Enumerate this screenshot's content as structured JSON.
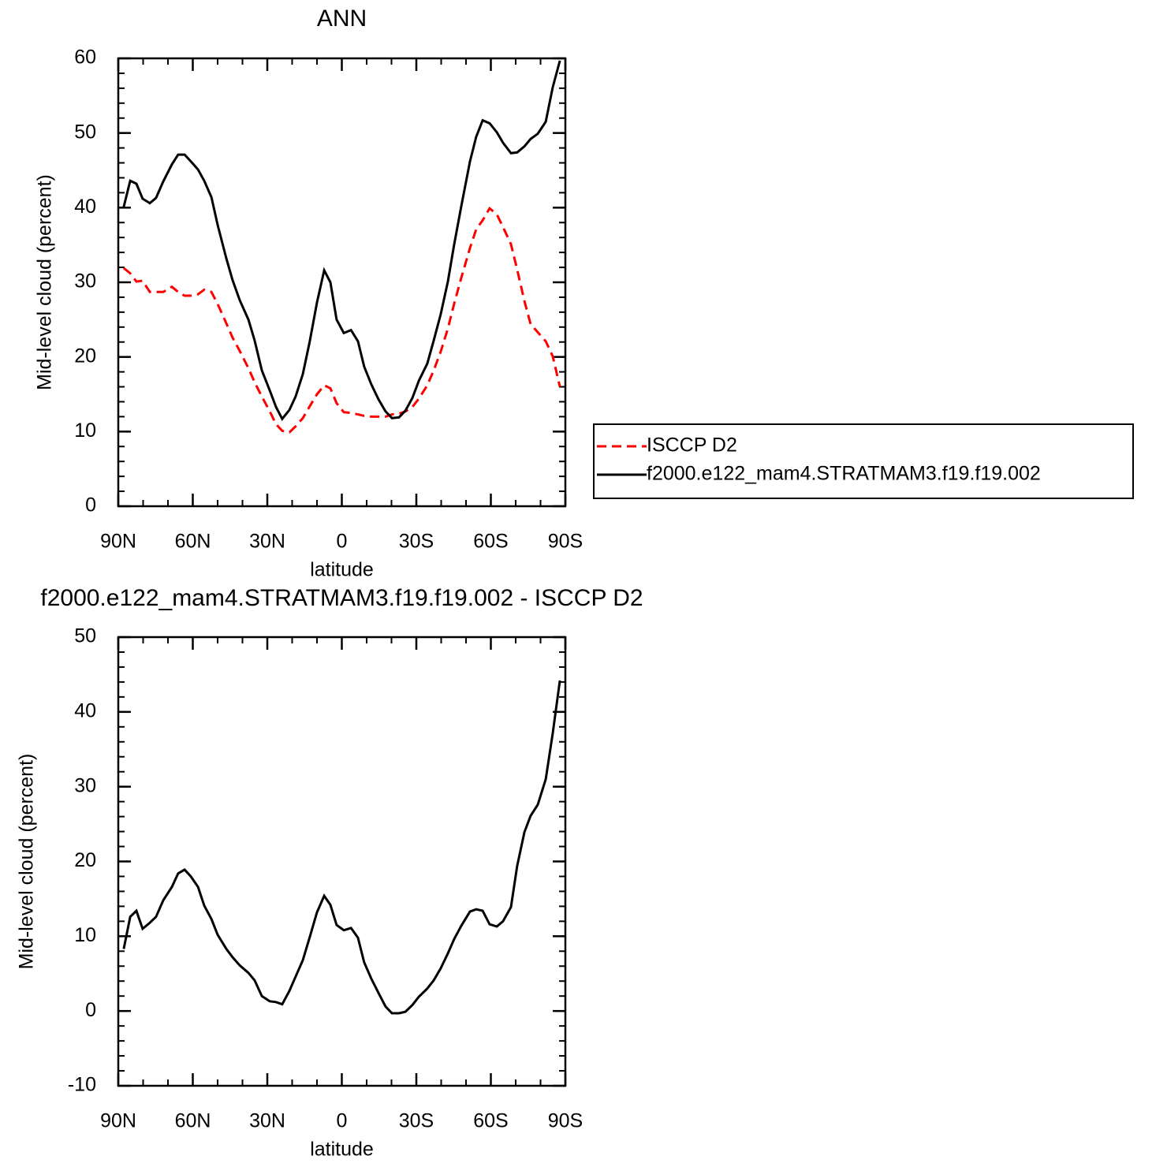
{
  "chart_data": [
    {
      "type": "line",
      "title": "ANN",
      "xlabel": "latitude",
      "ylabel": "Mid-level cloud (percent)",
      "x": [
        87.8,
        85.2,
        82.7,
        80.2,
        77.3,
        74.8,
        71.9,
        68.4,
        65.9,
        63.3,
        60.8,
        57.9,
        55.4,
        52.5,
        50.0,
        46.5,
        44.0,
        41.1,
        37.6,
        35.1,
        32.2,
        29.0,
        26.5,
        24.0,
        21.1,
        18.6,
        15.7,
        12.9,
        10.0,
        7.1,
        4.6,
        2.1,
        -0.8,
        -3.7,
        -6.5,
        -9.0,
        -11.9,
        -14.8,
        -17.6,
        -20.2,
        -23.0,
        -25.6,
        -28.4,
        -31.0,
        -34.4,
        -37.0,
        -39.8,
        -42.7,
        -45.2,
        -48.1,
        -51.6,
        -54.1,
        -56.7,
        -59.5,
        -62.4,
        -64.9,
        -68.1,
        -70.6,
        -73.5,
        -76.0,
        -78.9,
        -82.1,
        -84.9,
        -87.8
      ],
      "series": [
        {
          "name": "ISCCP D2",
          "color": "#ff0000",
          "line_style": "dashed",
          "values": [
            31.9,
            31.2,
            30.1,
            30.2,
            28.7,
            28.7,
            28.7,
            29.4,
            28.7,
            28.2,
            28.2,
            28.4,
            29.0,
            28.7,
            27.1,
            24.5,
            22.6,
            20.8,
            18.5,
            16.6,
            14.7,
            12.7,
            11.0,
            10.1,
            9.9,
            10.7,
            11.8,
            13.4,
            15.0,
            16.2,
            15.8,
            13.8,
            12.6,
            12.5,
            12.3,
            12.1,
            12.0,
            12.0,
            12.0,
            12.3,
            12.4,
            12.7,
            13.3,
            14.4,
            16.2,
            18.2,
            20.7,
            23.8,
            27.1,
            30.6,
            34.6,
            37.1,
            38.3,
            39.9,
            39.1,
            37.4,
            35.1,
            31.7,
            27.5,
            24.4,
            23.3,
            22.1,
            20.1,
            16.0
          ]
        },
        {
          "name": "f2000.e122_mam4.STRATMAM3.f19.f19.002",
          "color": "#000000",
          "line_style": "solid",
          "values": [
            40.1,
            43.6,
            43.2,
            41.2,
            40.6,
            41.3,
            43.5,
            45.8,
            47.1,
            47.1,
            46.2,
            45.1,
            43.6,
            41.4,
            37.7,
            33.2,
            30.3,
            27.6,
            25.0,
            22.2,
            18.2,
            15.5,
            13.3,
            11.7,
            12.9,
            14.7,
            17.7,
            22.1,
            27.3,
            31.6,
            30.0,
            25.0,
            23.2,
            23.6,
            22.1,
            18.7,
            16.3,
            14.3,
            12.7,
            11.8,
            11.9,
            12.8,
            14.5,
            16.8,
            19.1,
            22.2,
            25.7,
            30.1,
            35.0,
            40.2,
            46.2,
            49.5,
            51.7,
            51.3,
            50.1,
            48.7,
            47.3,
            47.4,
            48.2,
            49.2,
            49.9,
            51.5,
            56.1,
            59.7
          ]
        }
      ],
      "xlim": [
        90,
        -90
      ],
      "xticks": [
        {
          "value": 90,
          "label": "90N"
        },
        {
          "value": 60,
          "label": "60N"
        },
        {
          "value": 30,
          "label": "30N"
        },
        0,
        {
          "value": -30,
          "label": "30S"
        },
        {
          "value": -60,
          "label": "60S"
        },
        {
          "value": -90,
          "label": "90S"
        }
      ],
      "ylim": [
        0,
        60
      ],
      "yticks": [
        0,
        10,
        20,
        30,
        40,
        50,
        60
      ],
      "legend": "right"
    },
    {
      "type": "line",
      "title": "f2000.e122_mam4.STRATMAM3.f19.f19.002 - ISCCP D2",
      "xlabel": "latitude",
      "ylabel": "Mid-level cloud (percent)",
      "x": [
        87.8,
        85.2,
        82.7,
        80.2,
        77.3,
        74.8,
        71.9,
        68.4,
        65.9,
        63.3,
        60.8,
        57.9,
        55.4,
        52.5,
        50.0,
        46.5,
        44.0,
        41.1,
        37.6,
        35.1,
        32.2,
        29.0,
        26.5,
        24.0,
        21.1,
        18.6,
        15.7,
        12.9,
        10.0,
        7.1,
        4.6,
        2.1,
        -0.8,
        -3.7,
        -6.5,
        -9.0,
        -11.9,
        -14.8,
        -17.6,
        -20.2,
        -23.0,
        -25.6,
        -28.4,
        -31.0,
        -34.4,
        -37.0,
        -39.8,
        -42.7,
        -45.2,
        -48.1,
        -51.6,
        -54.1,
        -56.7,
        -59.5,
        -62.4,
        -64.9,
        -68.1,
        -70.6,
        -73.5,
        -76.0,
        -78.9,
        -82.1,
        -84.9,
        -87.8
      ],
      "values": [
        8.3,
        12.6,
        13.4,
        11.0,
        11.8,
        12.6,
        14.8,
        16.6,
        18.4,
        18.9,
        18.0,
        16.6,
        14.1,
        12.3,
        10.2,
        8.3,
        7.2,
        6.1,
        5.1,
        4.1,
        2.0,
        1.3,
        1.2,
        0.9,
        2.7,
        4.6,
        6.8,
        9.9,
        13.2,
        15.4,
        14.2,
        11.5,
        10.8,
        11.1,
        9.8,
        6.5,
        4.3,
        2.4,
        0.6,
        -0.3,
        -0.3,
        -0.1,
        0.8,
        1.9,
        3.0,
        4.1,
        5.7,
        7.7,
        9.6,
        11.4,
        13.3,
        13.6,
        13.4,
        11.6,
        11.3,
        12.0,
        13.9,
        19.4,
        23.9,
        26.1,
        27.6,
        31.0,
        37.1,
        44.2
      ],
      "color": "#000000",
      "xlim": [
        90,
        -90
      ],
      "xticks": [
        {
          "value": 90,
          "label": "90N"
        },
        {
          "value": 60,
          "label": "60N"
        },
        {
          "value": 30,
          "label": "30N"
        },
        0,
        {
          "value": -30,
          "label": "30S"
        },
        {
          "value": -60,
          "label": "60S"
        },
        {
          "value": -90,
          "label": "90S"
        }
      ],
      "ylim": [
        -10,
        50
      ],
      "yticks": [
        -10,
        0,
        10,
        20,
        30,
        40,
        50
      ]
    }
  ]
}
